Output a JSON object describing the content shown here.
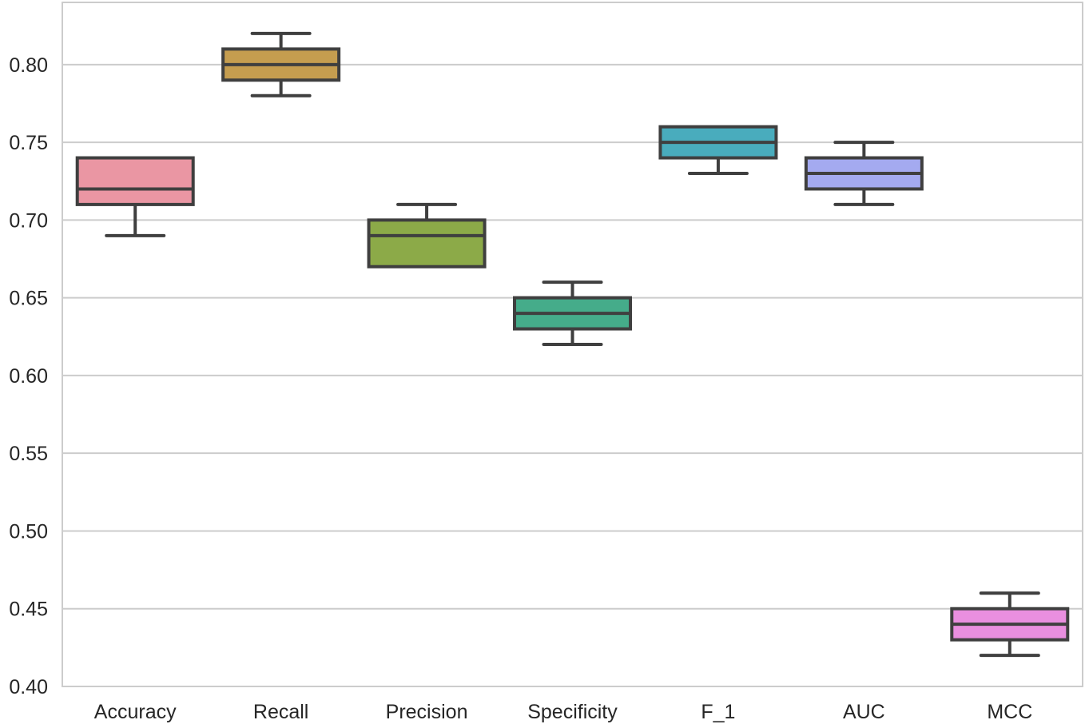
{
  "chart_data": {
    "type": "box",
    "title": "",
    "xlabel": "",
    "ylabel": "",
    "ylim": [
      0.4,
      0.84
    ],
    "yticks": [
      0.4,
      0.45,
      0.5,
      0.55,
      0.6,
      0.65,
      0.7,
      0.75,
      0.8
    ],
    "ytick_labels": [
      "0.40",
      "0.45",
      "0.50",
      "0.55",
      "0.60",
      "0.65",
      "0.70",
      "0.75",
      "0.80"
    ],
    "grid": true,
    "categories": [
      "Accuracy",
      "Recall",
      "Precision",
      "Specificity",
      "F_1",
      "AUC",
      "MCC"
    ],
    "boxes": [
      {
        "label": "Accuracy",
        "whisker_low": 0.69,
        "q1": 0.71,
        "median": 0.72,
        "q3": 0.74,
        "whisker_high": 0.74,
        "color": "#ea96a3"
      },
      {
        "label": "Recall",
        "whisker_low": 0.78,
        "q1": 0.79,
        "median": 0.8,
        "q3": 0.81,
        "whisker_high": 0.82,
        "color": "#c59d4f"
      },
      {
        "label": "Precision",
        "whisker_low": 0.67,
        "q1": 0.67,
        "median": 0.69,
        "q3": 0.7,
        "whisker_high": 0.71,
        "color": "#8caa48"
      },
      {
        "label": "Specificity",
        "whisker_low": 0.62,
        "q1": 0.63,
        "median": 0.64,
        "q3": 0.65,
        "whisker_high": 0.66,
        "color": "#45ac8a"
      },
      {
        "label": "F_1",
        "whisker_low": 0.73,
        "q1": 0.74,
        "median": 0.75,
        "q3": 0.76,
        "whisker_high": 0.76,
        "color": "#49acbd"
      },
      {
        "label": "AUC",
        "whisker_low": 0.71,
        "q1": 0.72,
        "median": 0.73,
        "q3": 0.74,
        "whisker_high": 0.75,
        "color": "#a4aaf0"
      },
      {
        "label": "MCC",
        "whisker_low": 0.42,
        "q1": 0.43,
        "median": 0.44,
        "q3": 0.45,
        "whisker_high": 0.46,
        "color": "#e98fdf"
      }
    ],
    "colors": {
      "grid": "#cccccc",
      "frame": "#cccccc",
      "stroke": "#3f3f3f",
      "text": "#262626"
    }
  }
}
